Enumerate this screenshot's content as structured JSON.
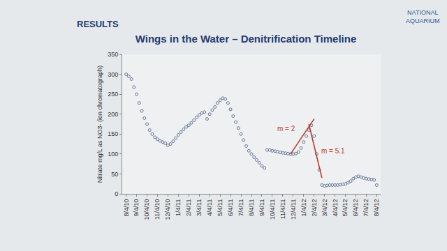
{
  "heading": "RESULTS",
  "logo_text": "NATIONAL AQUARIUM",
  "chart_data": {
    "type": "scatter",
    "title": "Wings in the Water – Denitrification Timeline",
    "y_label": "Nitrate mg/L as NO3- (ion chromatograph)",
    "categories": [
      "8/4/10",
      null,
      null,
      null,
      "9/4/10",
      null,
      null,
      null,
      "10/4/10",
      null,
      null,
      null,
      "11/4/10",
      null,
      null,
      null,
      "12/4/10",
      null,
      null,
      null,
      "1/4/11",
      null,
      null,
      null,
      "2/4/11",
      null,
      null,
      null,
      "3/4/11",
      null,
      null,
      null,
      "4/4/11",
      null,
      null,
      null,
      "5/4/11",
      null,
      null,
      null,
      "6/4/11",
      null,
      null,
      null,
      "7/4/11",
      null,
      null,
      null,
      "8/4/11",
      null,
      null,
      null,
      "9/4/11",
      null,
      null,
      null,
      "10/4/11",
      null,
      null,
      null,
      "11/4/11",
      null,
      null,
      null,
      "12/4/11",
      null,
      null,
      null,
      "1/4/12",
      null,
      null,
      null,
      "2/4/12",
      null,
      null,
      null,
      "3/4/12",
      null,
      null,
      null,
      "4/4/12",
      null,
      null,
      null,
      "5/4/12",
      null,
      null,
      null,
      "6/4/12",
      null,
      null,
      null,
      "7/4/12",
      null,
      null,
      null,
      "8/4/12"
    ],
    "values": [
      300,
      295,
      288,
      268,
      250,
      228,
      208,
      190,
      175,
      160,
      150,
      142,
      137,
      133,
      130,
      127,
      122,
      125,
      132,
      140,
      148,
      155,
      162,
      168,
      172,
      178,
      185,
      192,
      198,
      203,
      205,
      188,
      200,
      210,
      218,
      228,
      235,
      240,
      238,
      228,
      212,
      195,
      180,
      165,
      150,
      135,
      120,
      108,
      100,
      92,
      85,
      78,
      70,
      65,
      110,
      110,
      108,
      107,
      106,
      104,
      103,
      102,
      101,
      100,
      100,
      101,
      105,
      115,
      130,
      145,
      160,
      172,
      145,
      100,
      60,
      22,
      20,
      21,
      22,
      22,
      22,
      22,
      23,
      24,
      25,
      28,
      32,
      38,
      42,
      44,
      42,
      40,
      38,
      37,
      36,
      35,
      22
    ],
    "color": "#66789a",
    "marker": "circle-open",
    "ylim": [
      0,
      350
    ],
    "yticks": [
      0,
      50,
      100,
      150,
      200,
      250,
      300,
      350
    ],
    "grid": false,
    "trendlines": [
      {
        "label": "m = 2",
        "x": [
          63,
          72
        ],
        "values": [
          100,
          188
        ],
        "color": "#c0392b"
      },
      {
        "label": "m = 5.1",
        "x": [
          70,
          75
        ],
        "values": [
          175,
          40
        ],
        "color": "#c0392b"
      }
    ]
  }
}
